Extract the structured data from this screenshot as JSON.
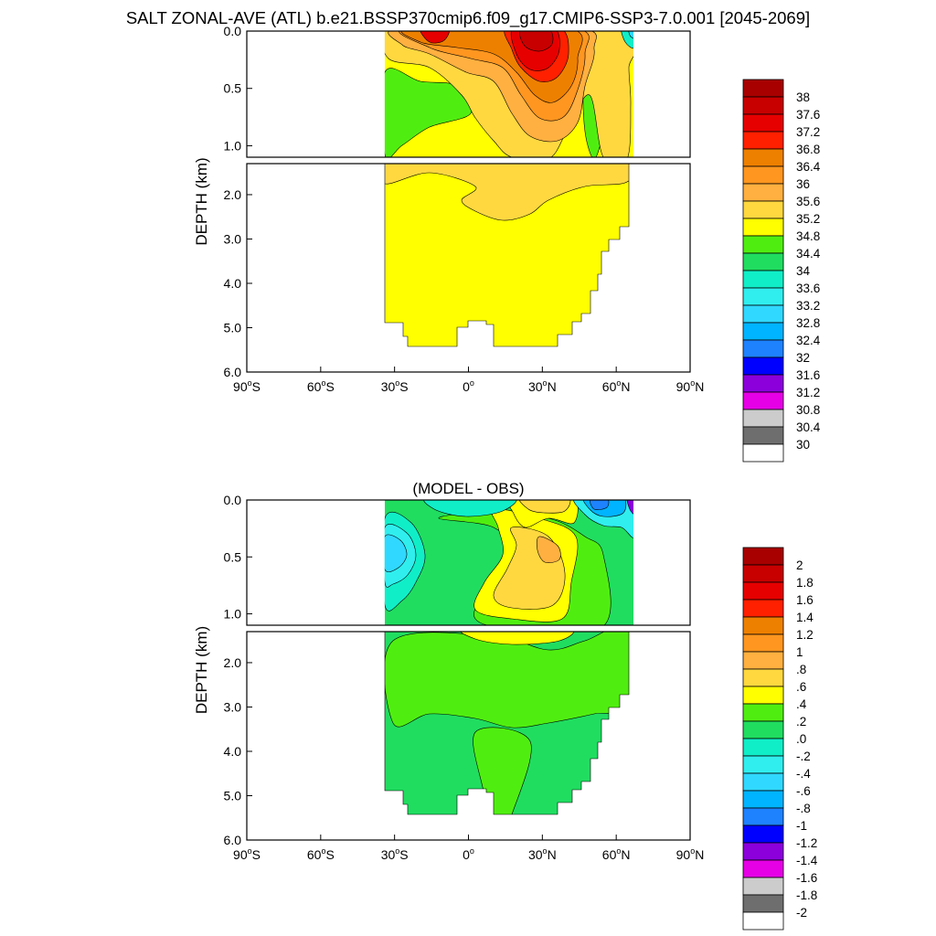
{
  "title": "SALT ZONAL-AVE (ATL) b.e21.BSSP370cmip6.f09_g17.CMIP6-SSP3-7.0.001 [2045-2069]",
  "chart_data": [
    {
      "type": "heatmap",
      "variable": "SALT",
      "subtitle": "",
      "xlabel": "",
      "ylabel": "DEPTH (km)",
      "xlim": [
        -90,
        90
      ],
      "ylim": [
        6.0,
        0.0
      ],
      "y_break": [
        1.1,
        1.3
      ],
      "x_ticks": [
        {
          "deg": "90",
          "hemi": "S"
        },
        {
          "deg": "60",
          "hemi": "S"
        },
        {
          "deg": "30",
          "hemi": "S"
        },
        {
          "deg": "0",
          "hemi": ""
        },
        {
          "deg": "30",
          "hemi": "N"
        },
        {
          "deg": "60",
          "hemi": "N"
        },
        {
          "deg": "90",
          "hemi": "N"
        }
      ],
      "y_ticks_upper": [
        "0.0",
        "0.5",
        "1.0"
      ],
      "y_ticks_lower": [
        "2.0",
        "3.0",
        "4.0",
        "5.0",
        "6.0"
      ],
      "data_extent_lat": [
        -34,
        67
      ],
      "colorbar": {
        "labels": [
          "38",
          "37.6",
          "37.2",
          "36.8",
          "36.4",
          "36",
          "35.6",
          "35.2",
          "34.8",
          "34.4",
          "34",
          "33.6",
          "33.2",
          "32.8",
          "32.4",
          "32",
          "31.6",
          "31.2",
          "30.8",
          "30.4",
          "30"
        ],
        "colors": [
          "#a80000",
          "#c80000",
          "#e60000",
          "#ff2000",
          "#ee8000",
          "#ff9620",
          "#ffb040",
          "#ffd840",
          "#ffff00",
          "#50ee10",
          "#20dd60",
          "#10eec8",
          "#30eeee",
          "#30d8ff",
          "#00b4ff",
          "#1e82ff",
          "#0000ff",
          "#8c00dc",
          "#e600e6",
          "#cccccc",
          "#6e6e6e",
          "#ffffff"
        ]
      }
    },
    {
      "type": "heatmap",
      "variable": "SALT",
      "subtitle": "(MODEL - OBS)",
      "xlabel": "",
      "ylabel": "DEPTH (km)",
      "xlim": [
        -90,
        90
      ],
      "ylim": [
        6.0,
        0.0
      ],
      "y_break": [
        1.1,
        1.3
      ],
      "x_ticks": [
        {
          "deg": "90",
          "hemi": "S"
        },
        {
          "deg": "60",
          "hemi": "S"
        },
        {
          "deg": "30",
          "hemi": "S"
        },
        {
          "deg": "0",
          "hemi": ""
        },
        {
          "deg": "30",
          "hemi": "N"
        },
        {
          "deg": "60",
          "hemi": "N"
        },
        {
          "deg": "90",
          "hemi": "N"
        }
      ],
      "y_ticks_upper": [
        "0.0",
        "0.5",
        "1.0"
      ],
      "y_ticks_lower": [
        "2.0",
        "3.0",
        "4.0",
        "5.0",
        "6.0"
      ],
      "data_extent_lat": [
        -34,
        67
      ],
      "colorbar": {
        "labels": [
          "2",
          "1.8",
          "1.6",
          "1.4",
          "1.2",
          "1",
          ".8",
          ".6",
          ".4",
          ".2",
          ".0",
          "-.2",
          "-.4",
          "-.6",
          "-.8",
          "-1",
          "-1.2",
          "-1.4",
          "-1.6",
          "-1.8",
          "-2"
        ],
        "colors": [
          "#a80000",
          "#c80000",
          "#e60000",
          "#ff2000",
          "#ee8000",
          "#ff9620",
          "#ffb040",
          "#ffd840",
          "#ffff00",
          "#50ee10",
          "#20dd60",
          "#10eec8",
          "#30eeee",
          "#30d8ff",
          "#00b4ff",
          "#1e82ff",
          "#0000ff",
          "#8c00dc",
          "#e600e6",
          "#cccccc",
          "#6e6e6e",
          "#ffffff"
        ]
      }
    }
  ]
}
